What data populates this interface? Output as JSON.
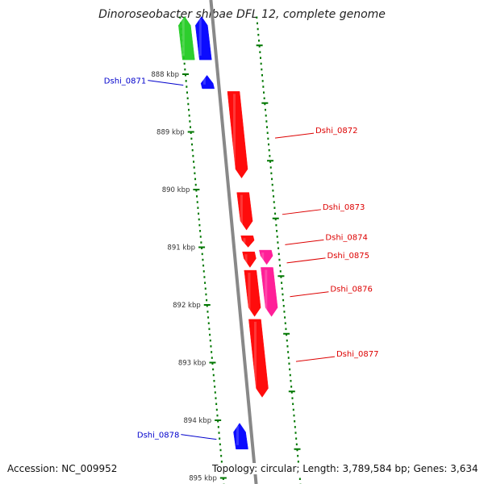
{
  "title": "Dinoroseobacter shibae DFL 12, complete genome",
  "footer": {
    "accession": "Accession: NC_009952",
    "summary": "Topology: circular; Length: 3,789,584 bp; Genes: 3,634"
  },
  "colors": {
    "background": "#ffffff",
    "backbone": "#888888",
    "forward_gene": "#0000ff",
    "forward_rna": "#22cc22",
    "reverse_gene": "#ff0000",
    "reverse_pseudo": "#ff1493",
    "tick": "#007700",
    "label_forward": "#0000cc",
    "label_reverse": "#dd0000"
  },
  "chart_data": {
    "type": "genome-map",
    "position_unit": "kbp",
    "visible_range": [
      887.0,
      895.1
    ],
    "tick_labels": [
      {
        "position": 888,
        "label": "888 kbp"
      },
      {
        "position": 889,
        "label": "889 kbp"
      },
      {
        "position": 890,
        "label": "890 kbp"
      },
      {
        "position": 891,
        "label": "891 kbp"
      },
      {
        "position": 892,
        "label": "892 kbp"
      },
      {
        "position": 893,
        "label": "893 kbp"
      },
      {
        "position": 894,
        "label": "894 kbp"
      },
      {
        "position": 895,
        "label": "895 kbp"
      }
    ],
    "features": [
      {
        "name": "",
        "strand": "+",
        "start": 887.0,
        "end": 887.75,
        "kind": "rna",
        "labeled": false
      },
      {
        "name": "",
        "strand": "+",
        "start": 887.0,
        "end": 887.75,
        "kind": "gene",
        "labeled": false
      },
      {
        "name": "Dshi_0871",
        "strand": "+",
        "start": 888.02,
        "end": 888.25,
        "kind": "gene",
        "labeled": true
      },
      {
        "name": "Dshi_0872",
        "strand": "-",
        "start": 888.3,
        "end": 889.8,
        "kind": "gene",
        "labeled": true
      },
      {
        "name": "Dshi_0873",
        "strand": "-",
        "start": 890.05,
        "end": 890.7,
        "kind": "gene",
        "labeled": true
      },
      {
        "name": "Dshi_0874",
        "strand": "-",
        "start": 890.8,
        "end": 891.0,
        "kind": "gene",
        "labeled": true
      },
      {
        "name": "Dshi_0875",
        "strand": "-",
        "start": 891.08,
        "end": 891.35,
        "kind": "gene",
        "labeled": true
      },
      {
        "name": "",
        "strand": "-",
        "start": 891.05,
        "end": 891.3,
        "kind": "pseudo",
        "labeled": false
      },
      {
        "name": "Dshi_0876",
        "strand": "-",
        "start": 891.4,
        "end": 892.2,
        "kind": "gene",
        "labeled": true
      },
      {
        "name": "",
        "strand": "-",
        "start": 891.35,
        "end": 892.2,
        "kind": "pseudo",
        "labeled": false
      },
      {
        "name": "Dshi_0877",
        "strand": "-",
        "start": 892.25,
        "end": 893.6,
        "kind": "gene",
        "labeled": true
      },
      {
        "name": "Dshi_0878",
        "strand": "+",
        "start": 894.05,
        "end": 894.5,
        "kind": "gene",
        "labeled": true
      }
    ]
  }
}
